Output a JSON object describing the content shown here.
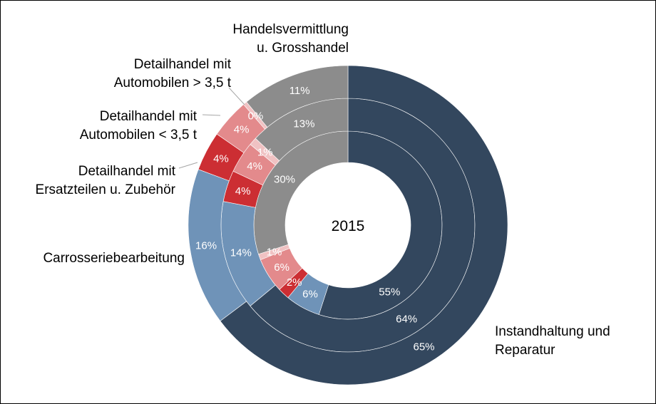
{
  "chart_data": {
    "type": "pie",
    "center_label": "2015",
    "categories": [
      "Instandhaltung und Reparatur",
      "Carrosseriebearbeitung",
      "Detailhandel mit Ersatzteilen u. Zubehör",
      "Detailhandel mit Automobilen < 3,5 t",
      "Detailhandel mit Automobilen > 3,5 t",
      "Handelsvermittlung u. Grosshandel"
    ],
    "category_labels": [
      [
        "Instandhaltung  und",
        "Reparatur"
      ],
      [
        "Carrosseriebearbeitung"
      ],
      [
        "Detailhandel  mit",
        "Ersatzteilen u. Zubehör"
      ],
      [
        "Detailhandel  mit",
        "Automobilen  < 3,5 t"
      ],
      [
        "Detailhandel  mit",
        "Automobilen  > 3,5 t"
      ],
      [
        "Handelsvermittlung",
        "u. Grosshandel"
      ]
    ],
    "colors": [
      "#33475e",
      "#6f93b8",
      "#cc2e33",
      "#e38a8c",
      "#f0c2c3",
      "#8c8c8c"
    ],
    "series": [
      {
        "ring": "inner",
        "values": [
          55,
          6,
          2,
          6,
          1,
          30
        ],
        "labels": [
          "55%",
          "6%",
          "2%",
          "6%",
          "1%",
          "30%"
        ]
      },
      {
        "ring": "middle",
        "values": [
          64,
          14,
          4,
          4,
          1,
          13
        ],
        "labels": [
          "64%",
          "14%",
          "4%",
          "4%",
          "1%",
          "13%"
        ]
      },
      {
        "ring": "outer",
        "values": [
          65,
          16,
          4,
          4,
          0,
          11
        ],
        "labels": [
          "65%",
          "16%",
          "4%",
          "4%",
          "0%",
          "11%"
        ]
      }
    ]
  }
}
